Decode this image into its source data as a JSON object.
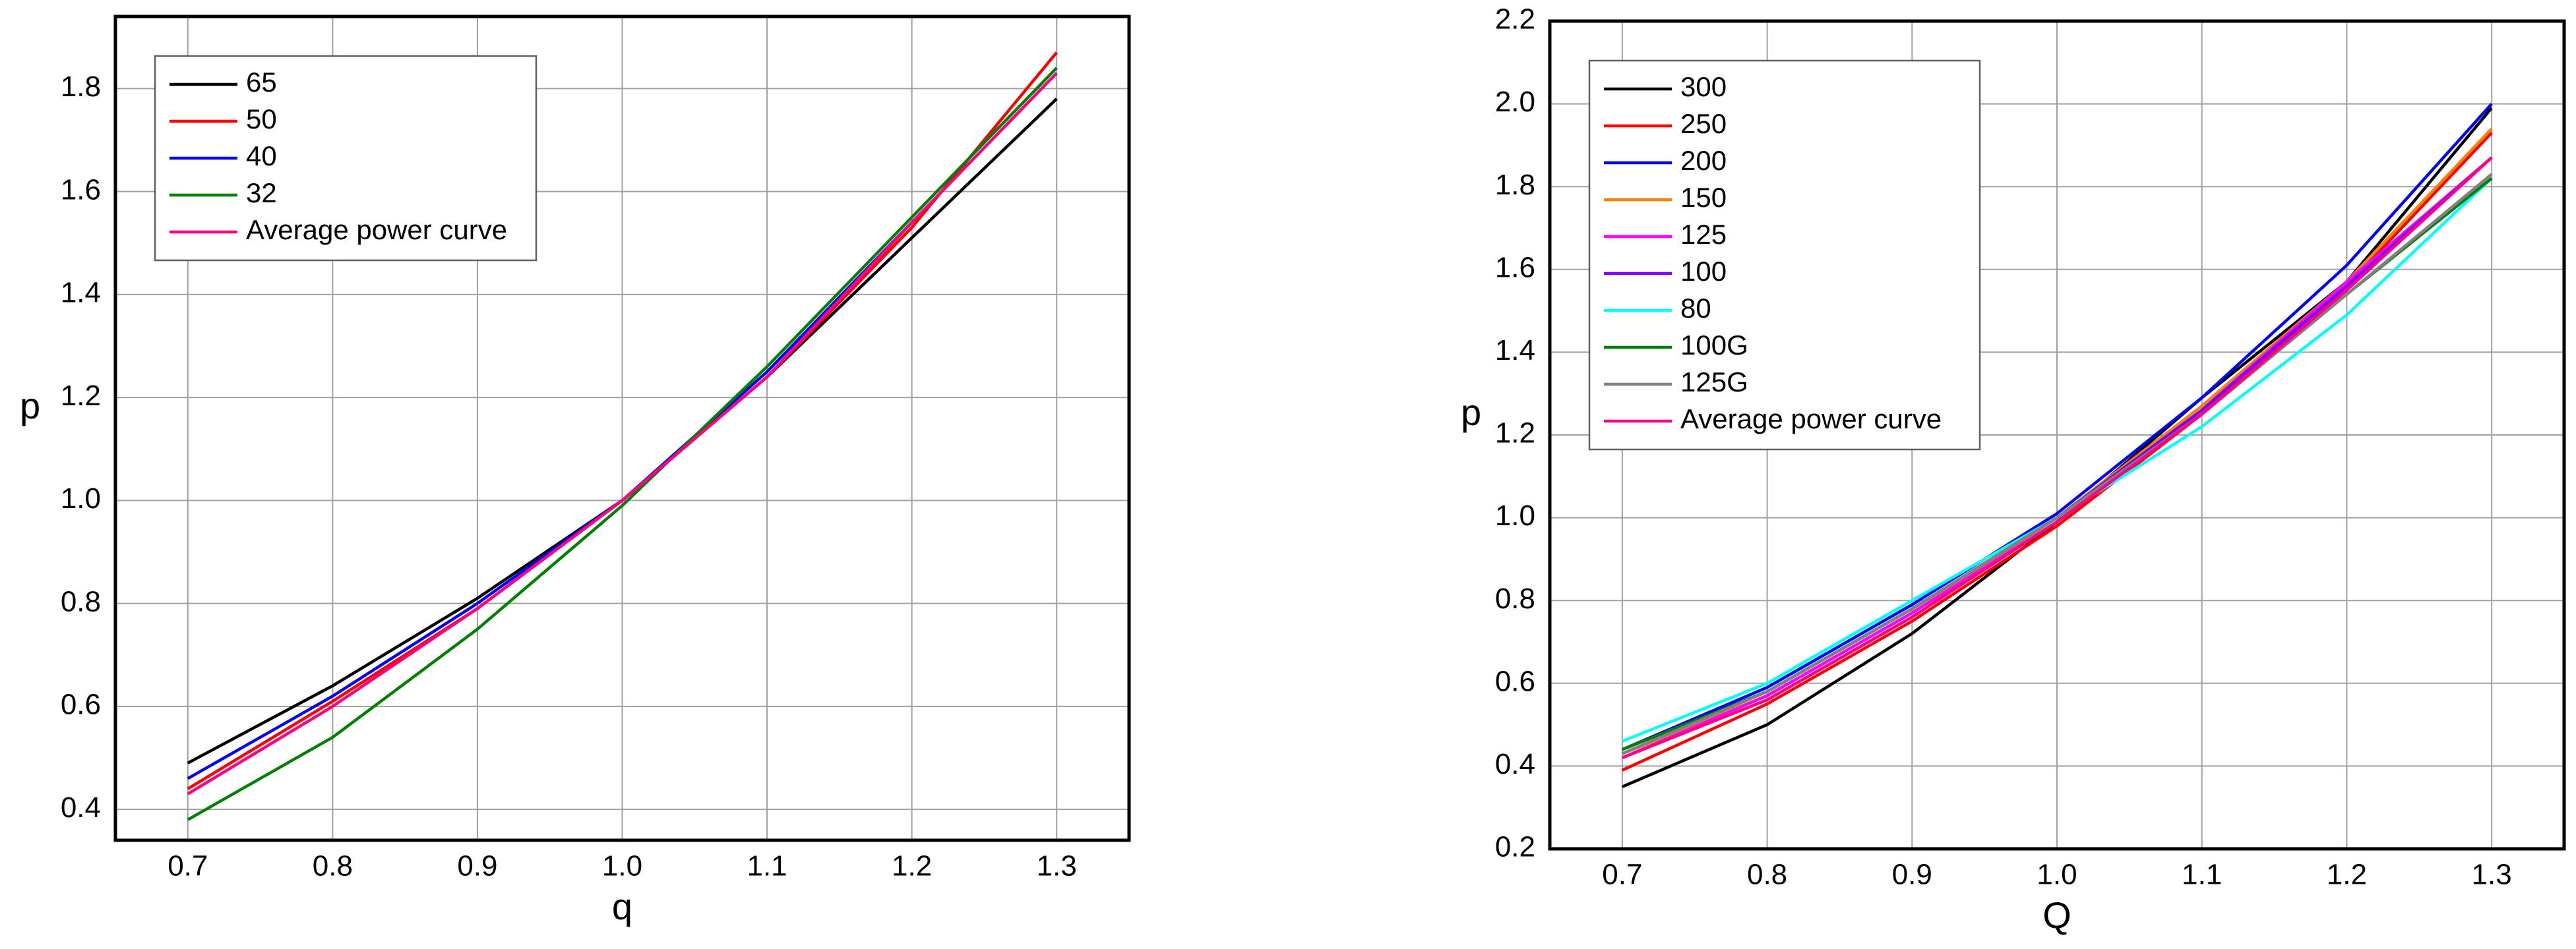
{
  "chart_data": [
    {
      "type": "line",
      "xlabel": "q",
      "ylabel": "p",
      "x": [
        0.7,
        0.8,
        0.9,
        1.0,
        1.1,
        1.2,
        1.3
      ],
      "xlim": [
        0.65,
        1.35
      ],
      "xticks": [
        0.7,
        0.8,
        0.9,
        {
          "value": 1.0,
          "label": "1.0"
        },
        1.1,
        1.2,
        1.3
      ],
      "ylim": [
        0.34,
        1.94
      ],
      "yticks": [
        0.4,
        0.6,
        0.8,
        {
          "value": 1.0,
          "label": "1.0"
        },
        1.2,
        1.4,
        1.6,
        1.8
      ],
      "grid": true,
      "legend": "upper left",
      "series": [
        {
          "name": "65",
          "color": "#000000",
          "values": [
            0.49,
            0.64,
            0.81,
            1.0,
            1.24,
            1.51,
            1.78
          ]
        },
        {
          "name": "50",
          "color": "#ff0000",
          "values": [
            0.44,
            0.61,
            0.79,
            1.0,
            1.24,
            1.53,
            1.87
          ]
        },
        {
          "name": "40",
          "color": "#0000ff",
          "values": [
            0.46,
            0.62,
            0.8,
            1.0,
            1.25,
            1.54,
            1.83
          ]
        },
        {
          "name": "32",
          "color": "#008000",
          "values": [
            0.38,
            0.54,
            0.75,
            0.99,
            1.26,
            1.55,
            1.84
          ]
        },
        {
          "name": "Average power curve",
          "color": "#ff0080",
          "values": [
            0.43,
            0.6,
            0.79,
            1.0,
            1.24,
            1.54,
            1.83
          ]
        }
      ]
    },
    {
      "type": "line",
      "xlabel": "Q",
      "ylabel": "p",
      "x": [
        0.7,
        0.8,
        0.9,
        1.0,
        1.1,
        1.2,
        1.3
      ],
      "xlim": [
        0.65,
        1.35
      ],
      "xticks": [
        0.7,
        0.8,
        0.9,
        {
          "value": 1.0,
          "label": "1.0"
        },
        1.1,
        1.2,
        1.3
      ],
      "ylim": [
        0.2,
        2.2
      ],
      "yticks": [
        0.2,
        0.4,
        0.6,
        0.8,
        {
          "value": 1.0,
          "label": "1.0"
        },
        1.2,
        1.4,
        1.6,
        1.8,
        {
          "value": 2.0,
          "label": "2.0"
        },
        2.2
      ],
      "grid": true,
      "legend": "upper left",
      "series": [
        {
          "name": "300",
          "color": "#000000",
          "values": [
            0.35,
            0.5,
            0.72,
            0.99,
            1.29,
            1.57,
            1.99
          ]
        },
        {
          "name": "250",
          "color": "#ff0000",
          "values": [
            0.39,
            0.55,
            0.75,
            0.98,
            1.25,
            1.56,
            1.93
          ]
        },
        {
          "name": "200",
          "color": "#0000ff",
          "values": [
            0.44,
            0.59,
            0.79,
            1.01,
            1.29,
            1.61,
            2.0
          ]
        },
        {
          "name": "150",
          "color": "#ff8000",
          "values": [
            0.43,
            0.57,
            0.77,
            1.0,
            1.27,
            1.57,
            1.94
          ]
        },
        {
          "name": "125",
          "color": "#ff00ff",
          "values": [
            0.42,
            0.57,
            0.77,
            0.99,
            1.26,
            1.57,
            1.87
          ]
        },
        {
          "name": "100",
          "color": "#8000ff",
          "values": [
            0.44,
            0.58,
            0.78,
            1.0,
            1.26,
            1.56,
            1.87
          ]
        },
        {
          "name": "80",
          "color": "#00ffff",
          "values": [
            0.46,
            0.6,
            0.8,
            1.0,
            1.22,
            1.49,
            1.82
          ]
        },
        {
          "name": "100G",
          "color": "#008000",
          "values": [
            0.44,
            0.58,
            0.78,
            1.0,
            1.25,
            1.54,
            1.82
          ]
        },
        {
          "name": "125G",
          "color": "#808080",
          "values": [
            0.43,
            0.58,
            0.78,
            1.0,
            1.25,
            1.54,
            1.83
          ]
        },
        {
          "name": "Average power curve",
          "color": "#ff0080",
          "values": [
            0.42,
            0.56,
            0.76,
            0.99,
            1.25,
            1.55,
            1.87
          ]
        }
      ]
    }
  ]
}
